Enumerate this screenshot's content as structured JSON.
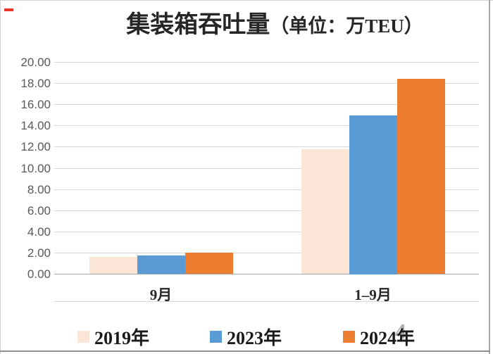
{
  "chart_data": {
    "type": "bar",
    "title": "集装箱吞吐量",
    "title_unit": "（单位：万TEU）",
    "categories": [
      "9月",
      "1–9月"
    ],
    "series": [
      {
        "name": "2019年",
        "color": "#fbe5d6",
        "values": [
          1.63,
          11.8
        ]
      },
      {
        "name": "2023年",
        "color": "#5b9bd5",
        "values": [
          1.75,
          15.0
        ]
      },
      {
        "name": "2024年",
        "color": "#ed7d31",
        "values": [
          2.04,
          18.45
        ]
      }
    ],
    "y_axis": {
      "min": 0,
      "max": 20,
      "step": 2,
      "tick_labels": [
        "20.00",
        "18.00",
        "16.00",
        "14.00",
        "12.00",
        "10.00",
        "8.00",
        "6.00",
        "4.00",
        "2.00",
        "0.00"
      ]
    },
    "grid": true,
    "legend_position": "bottom"
  },
  "watermark": {
    "text": "4"
  },
  "colors": {
    "series_2019": "#fbe5d6",
    "series_2023": "#5b9bd5",
    "series_2024": "#ed7d31",
    "gridline": "#d9d9d9",
    "axis_line": "#a6a6a6",
    "tick_text": "#595959",
    "title_text": "#262626",
    "red_mark": "#e8362b"
  }
}
